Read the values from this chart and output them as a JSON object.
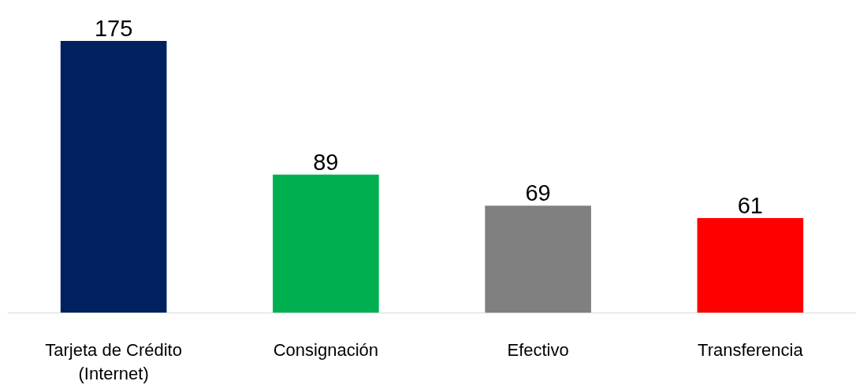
{
  "chart_data": {
    "type": "bar",
    "categories": [
      "Tarjeta de Crédito (Internet)",
      "Consignación",
      "Efectivo",
      "Transferencia"
    ],
    "values": [
      175,
      89,
      69,
      61
    ],
    "colors": [
      "#002060",
      "#00b050",
      "#808080",
      "#ff0000"
    ],
    "data_labels": true,
    "grid": false,
    "tick_labels": "x"
  }
}
